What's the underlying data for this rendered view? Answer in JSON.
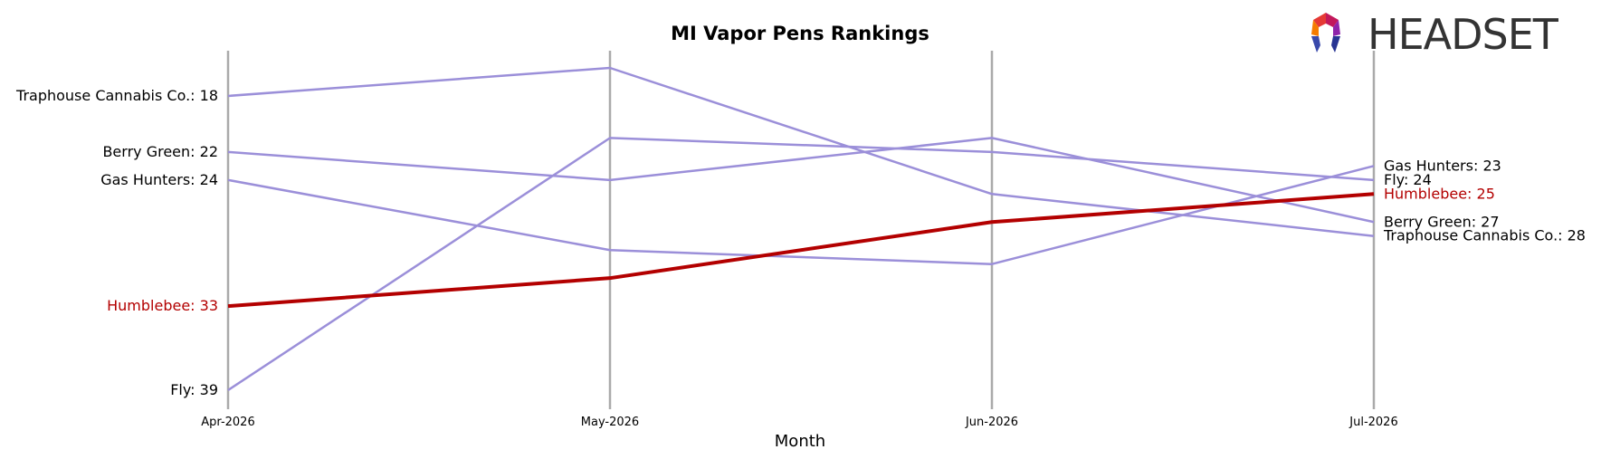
{
  "chart_data": {
    "type": "line",
    "title": "MI Vapor Pens Rankings",
    "xlabel": "Month",
    "ylabel": "",
    "categories": [
      "Apr-2026",
      "May-2026",
      "Jun-2026",
      "Jul-2026"
    ],
    "y_inverted": true,
    "ylim": [
      16,
      40
    ],
    "grid": false,
    "colors": {
      "highlight": "#b30000",
      "other": "#9b8fd9",
      "axis_line": "#aaaaaa"
    },
    "series": [
      {
        "name": "Traphouse Cannabis Co.",
        "values": [
          18,
          16,
          25,
          28
        ],
        "highlight": false,
        "start_label": "Traphouse Cannabis Co.: 18",
        "end_label": "Traphouse Cannabis Co.: 28"
      },
      {
        "name": "Berry Green",
        "values": [
          22,
          24,
          21,
          27
        ],
        "highlight": false,
        "start_label": "Berry Green: 22",
        "end_label": "Berry Green: 27"
      },
      {
        "name": "Gas Hunters",
        "values": [
          24,
          29,
          30,
          23
        ],
        "highlight": false,
        "start_label": "Gas Hunters: 24",
        "end_label": "Gas Hunters: 23"
      },
      {
        "name": "Fly",
        "values": [
          39,
          21,
          22,
          24
        ],
        "highlight": false,
        "start_label": "Fly: 39",
        "end_label": "Fly: 24"
      },
      {
        "name": "Humblebee",
        "values": [
          33,
          31,
          27,
          25
        ],
        "highlight": true,
        "start_label": "Humblebee: 33",
        "end_label": "Humblebee: 25"
      }
    ]
  },
  "logo": {
    "text": "HEADSET",
    "icon": "headset-logo-icon"
  }
}
